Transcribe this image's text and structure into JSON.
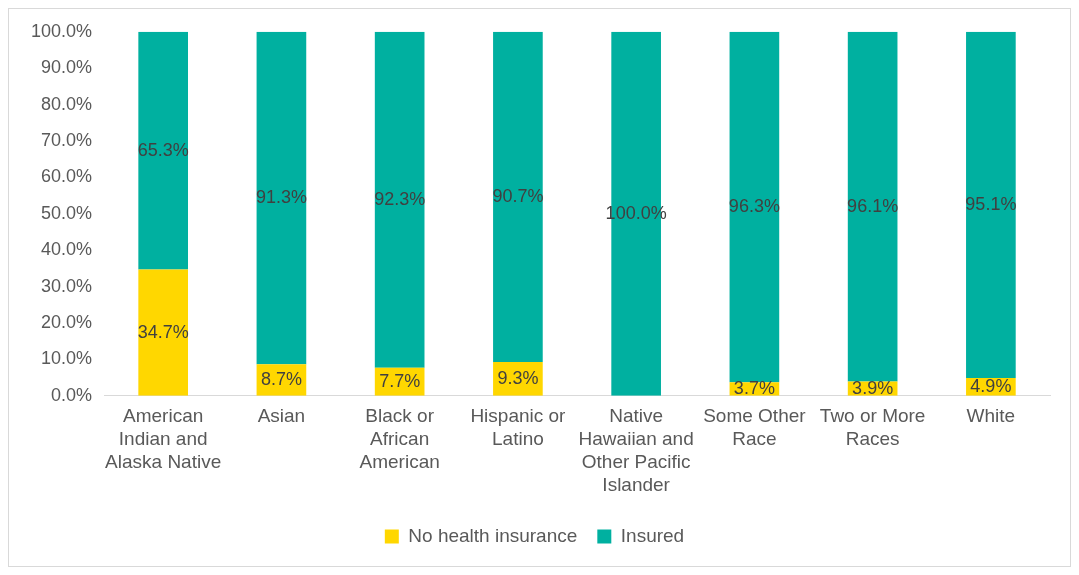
{
  "chart_data": {
    "type": "bar",
    "stacked": true,
    "categories": [
      "American Indian and Alaska Native",
      "Asian",
      "Black or African American",
      "Hispanic or Latino",
      "Native Hawaiian and Other Pacific Islander",
      "Some Other Race",
      "Two or More Races",
      "White"
    ],
    "series": [
      {
        "name": "No health insurance",
        "color": "#ffd700",
        "values": [
          34.7,
          8.7,
          7.7,
          9.3,
          0,
          3.7,
          3.9,
          4.9
        ],
        "value_labels": [
          "34.7%",
          "8.7%",
          "7.7%",
          "9.3%",
          null,
          "3.7%",
          "3.9%",
          "4.9%"
        ]
      },
      {
        "name": "Insured",
        "color": "#00b0a0",
        "values": [
          65.3,
          91.3,
          92.3,
          90.7,
          100,
          96.3,
          96.1,
          95.1
        ],
        "value_labels": [
          "65.3%",
          "91.3%",
          "92.3%",
          "90.7%",
          "100.0%",
          "96.3%",
          "96.1%",
          "95.1%"
        ]
      }
    ],
    "ylim": [
      0,
      100
    ],
    "yticks": [
      {
        "value": 0,
        "label": "0.0%"
      },
      {
        "value": 10,
        "label": "10.0%"
      },
      {
        "value": 20,
        "label": "20.0%"
      },
      {
        "value": 30,
        "label": "30.0%"
      },
      {
        "value": 40,
        "label": "40.0%"
      },
      {
        "value": 50,
        "label": "50.0%"
      },
      {
        "value": 60,
        "label": "60.0%"
      },
      {
        "value": 70,
        "label": "70.0%"
      },
      {
        "value": 80,
        "label": "80.0%"
      },
      {
        "value": 90,
        "label": "90.0%"
      },
      {
        "value": 100,
        "label": "100.0%"
      }
    ],
    "grid": false,
    "legend": "bottom"
  }
}
